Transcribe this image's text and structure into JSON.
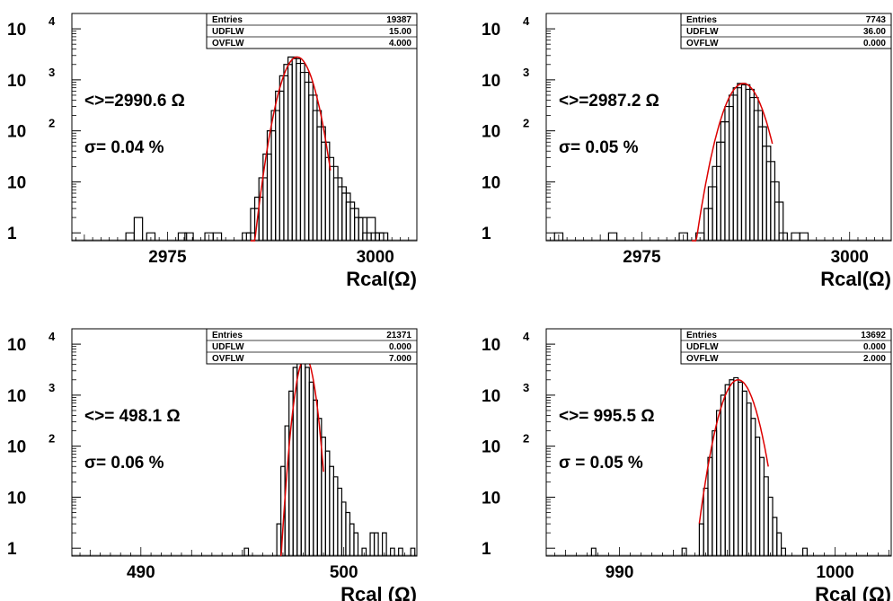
{
  "chart_data": [
    {
      "type": "histogram",
      "xlabel": "Rcal(Ω)",
      "x_ticks": [
        "2975",
        "3000"
      ],
      "xlim": [
        2963.5,
        3005
      ],
      "y_scale": "log",
      "y_ticks": [
        "1",
        "10",
        "10 2",
        "10 3",
        "10 4"
      ],
      "ylim": [
        0.7,
        20000
      ],
      "stats": [
        {
          "name": "Entries",
          "value": "19387"
        },
        {
          "name": "UDFLW",
          "value": "15.00"
        },
        {
          "name": "OVFLW",
          "value": "4.000"
        }
      ],
      "annotations": [
        "<>=2990.6 Ω",
        "σ=  0.04 %"
      ],
      "bins_x": [
        2970.5,
        2971.5,
        2973,
        2976.8,
        2977.6,
        2980,
        2981,
        2984.5,
        2985,
        2985.5,
        2986,
        2986.5,
        2987,
        2987.5,
        2988,
        2988.5,
        2989,
        2989.5,
        2990,
        2990.5,
        2991,
        2991.5,
        2992,
        2992.5,
        2993,
        2993.5,
        2994,
        2994.5,
        2995,
        2995.5,
        2996,
        2996.5,
        2997,
        2997.5,
        2998,
        2998.5,
        2999,
        2999.5,
        3000,
        3000.5,
        3001
      ],
      "bins_y": [
        1,
        2,
        1,
        1,
        1,
        1,
        1,
        1,
        1,
        3,
        5,
        12,
        35,
        100,
        250,
        600,
        1200,
        2000,
        2800,
        2600,
        2100,
        1400,
        900,
        500,
        250,
        120,
        60,
        30,
        20,
        12,
        8,
        6,
        4,
        3,
        2,
        2,
        1,
        2,
        1,
        1,
        1
      ],
      "fit": {
        "mean": 2990.6,
        "sigma": 1.25,
        "amplitude": 2800,
        "range": [
          2985,
          2994.6
        ]
      }
    },
    {
      "type": "histogram",
      "xlabel": "Rcal(Ω)",
      "x_ticks": [
        "2975",
        "3000"
      ],
      "xlim": [
        2963.5,
        3005
      ],
      "y_scale": "log",
      "y_ticks": [
        "1",
        "10",
        "10 2",
        "10 3",
        "10 4"
      ],
      "ylim": [
        0.7,
        20000
      ],
      "stats": [
        {
          "name": "Entries",
          "value": "7743"
        },
        {
          "name": "UDFLW",
          "value": "36.00"
        },
        {
          "name": "OVFLW",
          "value": "0.000"
        }
      ],
      "annotations": [
        "<>=2987.2 Ω",
        "σ=  0.05 %"
      ],
      "bins_x": [
        2965,
        2971.5,
        2980,
        2982,
        2983,
        2983.5,
        2984,
        2984.5,
        2985,
        2985.5,
        2986,
        2986.5,
        2987,
        2987.5,
        2988,
        2988.5,
        2989,
        2989.5,
        2990,
        2990.5,
        2991,
        2991.5,
        2992,
        2993.5,
        2994.5
      ],
      "bins_y": [
        1,
        1,
        1,
        1,
        3,
        8,
        20,
        60,
        150,
        300,
        500,
        700,
        850,
        800,
        650,
        450,
        250,
        120,
        50,
        25,
        10,
        4,
        1,
        1,
        1
      ],
      "fit": {
        "mean": 2987.2,
        "sigma": 1.5,
        "amplitude": 850,
        "range": [
          2981,
          2990.7
        ]
      }
    },
    {
      "type": "histogram",
      "xlabel": "Rcal (Ω)",
      "x_ticks": [
        "490",
        "500"
      ],
      "xlim": [
        486.6,
        503.6
      ],
      "y_scale": "log",
      "y_ticks": [
        "1",
        "10",
        "10 2",
        "10 3",
        "10 4"
      ],
      "ylim": [
        0.7,
        20000
      ],
      "stats": [
        {
          "name": "Entries",
          "value": "21371"
        },
        {
          "name": "UDFLW",
          "value": "0.000"
        },
        {
          "name": "OVFLW",
          "value": "7.000"
        }
      ],
      "annotations": [
        "<>= 498.1 Ω",
        "σ=  0.06 %"
      ],
      "bins_x": [
        495.2,
        496.8,
        497,
        497.2,
        497.4,
        497.6,
        497.8,
        498,
        498.2,
        498.4,
        498.6,
        498.8,
        499,
        499.2,
        499.4,
        499.6,
        499.8,
        500,
        500.2,
        500.4,
        500.6,
        501,
        501.4,
        501.6,
        502,
        502.4,
        502.8,
        503.4
      ],
      "bins_y": [
        1,
        3,
        40,
        250,
        1200,
        3500,
        5500,
        5000,
        3500,
        1800,
        800,
        350,
        150,
        80,
        40,
        25,
        15,
        8,
        5,
        3,
        2,
        1,
        2,
        2,
        2,
        1,
        1,
        1
      ],
      "fit": {
        "mean": 498.1,
        "sigma": 0.28,
        "amplitude": 5500,
        "range": [
          496.9,
          499
        ]
      }
    },
    {
      "type": "histogram",
      "xlabel": "Rcal (Ω)",
      "x_ticks": [
        "990",
        "1000"
      ],
      "xlim": [
        986.6,
        1002.6
      ],
      "y_scale": "log",
      "y_ticks": [
        "1",
        "10",
        "10 2",
        "10 3",
        "10 4"
      ],
      "ylim": [
        0.7,
        20000
      ],
      "stats": [
        {
          "name": "Entries",
          "value": "13692"
        },
        {
          "name": "UDFLW",
          "value": "0.000"
        },
        {
          "name": "OVFLW",
          "value": "2.000"
        }
      ],
      "annotations": [
        "<>= 995.5 Ω",
        "σ =   0.05 %"
      ],
      "bins_x": [
        988.8,
        993,
        993.8,
        994,
        994.2,
        994.4,
        994.6,
        994.8,
        995,
        995.2,
        995.4,
        995.6,
        995.8,
        996,
        996.2,
        996.4,
        996.6,
        996.8,
        997,
        997.2,
        997.4,
        997.6,
        998.6
      ],
      "bins_y": [
        1,
        1,
        3,
        15,
        60,
        200,
        500,
        1000,
        1600,
        2000,
        2200,
        1800,
        1200,
        700,
        350,
        150,
        60,
        25,
        10,
        4,
        2,
        1,
        1
      ],
      "fit": {
        "mean": 995.5,
        "sigma": 0.5,
        "amplitude": 2000,
        "range": [
          993.7,
          996.9
        ]
      }
    }
  ]
}
